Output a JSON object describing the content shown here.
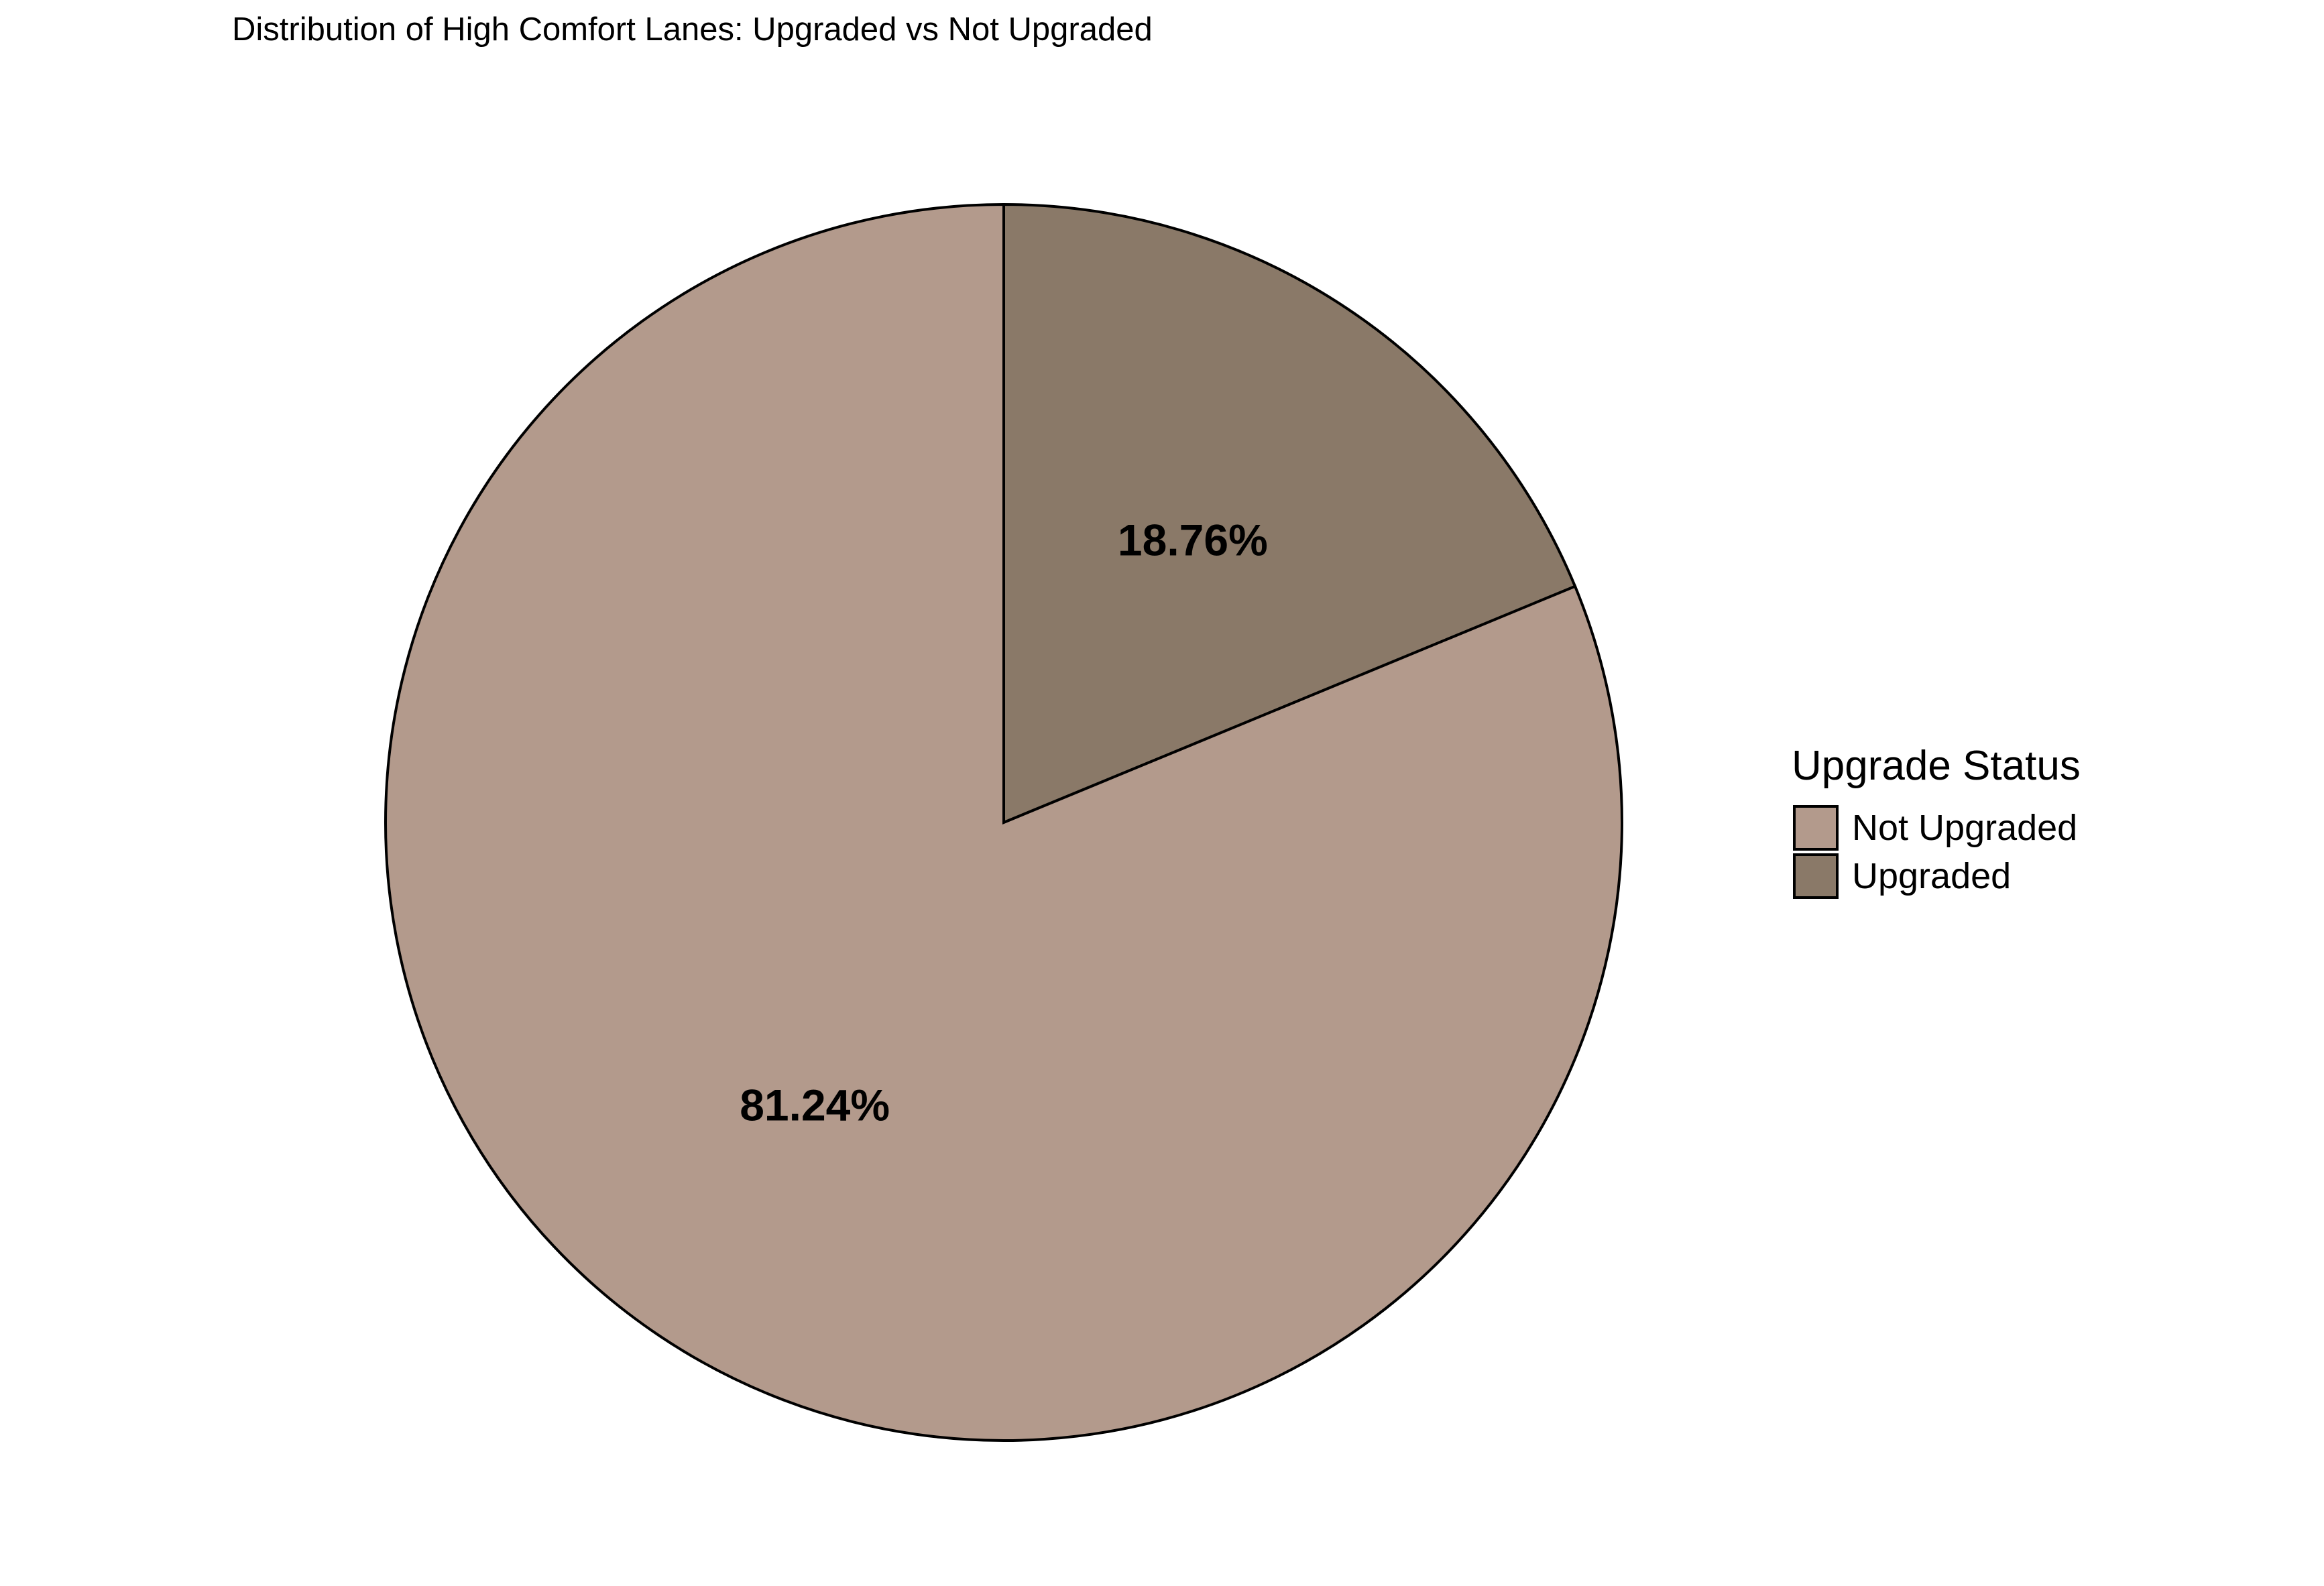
{
  "chart_data": {
    "type": "pie",
    "title": "Distribution of High Comfort Lanes: Upgraded vs Not Upgraded",
    "legend": {
      "title": "Upgrade Status",
      "placement": "right"
    },
    "slices": [
      {
        "name": "Not Upgraded",
        "value": 81.24,
        "label": "81.24%",
        "color": "#b39a8c"
      },
      {
        "name": "Upgraded",
        "value": 18.76,
        "label": "18.76%",
        "color": "#8a7968"
      }
    ],
    "slice_border_color": "#000000"
  }
}
